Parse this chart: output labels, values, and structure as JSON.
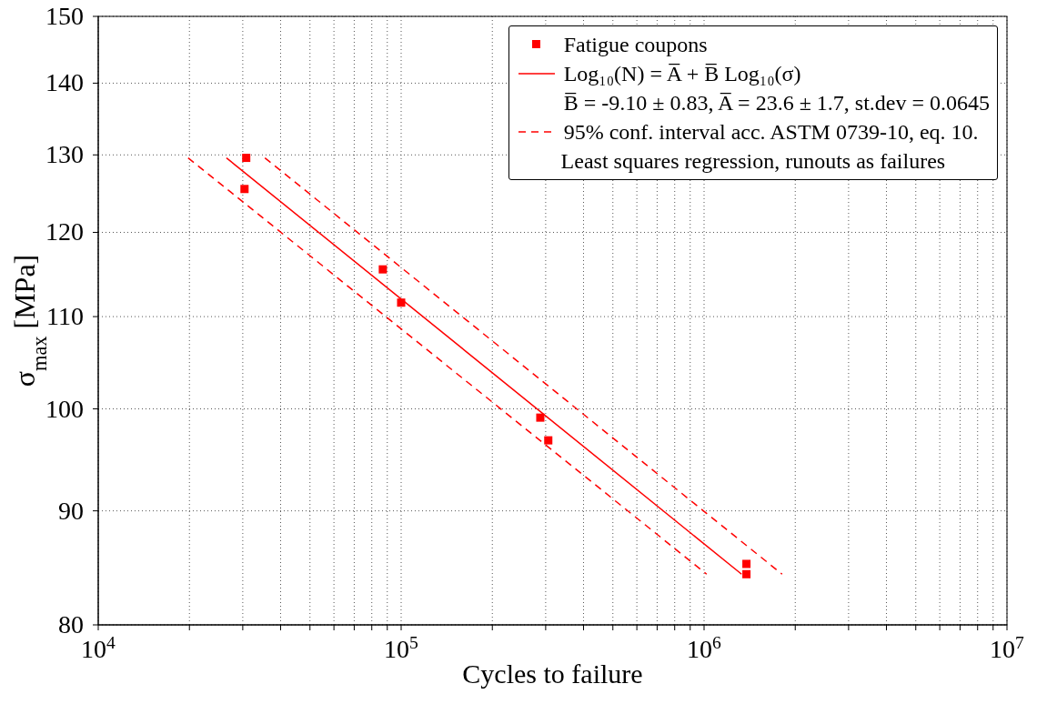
{
  "chart_data": {
    "type": "scatter",
    "xlabel": "Cycles to failure",
    "ylabel": "σ$_{max}$ [MPa]",
    "log": "xy",
    "grid": true,
    "legend": "top right",
    "marker": "square",
    "xlim": [
      10000,
      10000000
    ],
    "ylim": [
      80,
      150
    ],
    "xticks": [
      {
        "value": 10000,
        "label": "10$^{4}$"
      },
      {
        "value": 20000,
        "label": null
      },
      {
        "value": 30000,
        "label": null
      },
      {
        "value": 40000,
        "label": null
      },
      {
        "value": 50000,
        "label": null
      },
      {
        "value": 60000,
        "label": null
      },
      {
        "value": 70000,
        "label": null
      },
      {
        "value": 80000,
        "label": null
      },
      {
        "value": 90000,
        "label": null
      },
      {
        "value": 100000,
        "label": "10$^{5}$"
      },
      {
        "value": 200000,
        "label": null
      },
      {
        "value": 300000,
        "label": null
      },
      {
        "value": 400000,
        "label": null
      },
      {
        "value": 500000,
        "label": null
      },
      {
        "value": 600000,
        "label": null
      },
      {
        "value": 700000,
        "label": null
      },
      {
        "value": 800000,
        "label": null
      },
      {
        "value": 900000,
        "label": null
      },
      {
        "value": 1000000,
        "label": "10$^{6}$"
      },
      {
        "value": 2000000,
        "label": null
      },
      {
        "value": 3000000,
        "label": null
      },
      {
        "value": 4000000,
        "label": null
      },
      {
        "value": 5000000,
        "label": null
      },
      {
        "value": 6000000,
        "label": null
      },
      {
        "value": 7000000,
        "label": null
      },
      {
        "value": 8000000,
        "label": null
      },
      {
        "value": 9000000,
        "label": null
      },
      {
        "value": 10000000,
        "label": "10$^{7}$"
      }
    ],
    "yticks": [
      80,
      90,
      100,
      110,
      120,
      130,
      140,
      150
    ],
    "annotations": [
      "B̅ =  -9.10 ± 0.83,  A̅ =  23.6 ± 1.7,  st.dev =  0.0645",
      "Least squares regression, runouts as failures"
    ],
    "series": [
      {
        "name": "Fatigue coupons",
        "type": "scatter",
        "color": "#ff0000",
        "x": [
          30800,
          30400,
          87000,
          100000,
          288000,
          306000,
          1380000,
          1380000
        ],
        "values": [
          129.6,
          125.5,
          115.5,
          111.6,
          99.1,
          96.8,
          85.2,
          84.3
        ]
      },
      {
        "name": "Log₁₀(N) = A̅ + B̅ Log₁₀(σ)",
        "type": "line",
        "color": "#ff0000",
        "line_style": "solid",
        "marker": "none",
        "x": [
          26500,
          1330000
        ],
        "values": [
          129.6,
          84.3
        ]
      },
      {
        "name": "95% conf. interval acc. ASTM 0739-10, eq. 10.",
        "type": "line",
        "color": "#ff0000",
        "line_style": "dashed",
        "marker": "none",
        "x": [
          35500,
          1810000
        ],
        "values": [
          129.6,
          84.3
        ]
      },
      {
        "type": "line",
        "color": "#ff0000",
        "line_style": "dashed",
        "marker": "none",
        "x": [
          19800,
          1020000
        ],
        "values": [
          129.6,
          84.3
        ]
      }
    ]
  }
}
